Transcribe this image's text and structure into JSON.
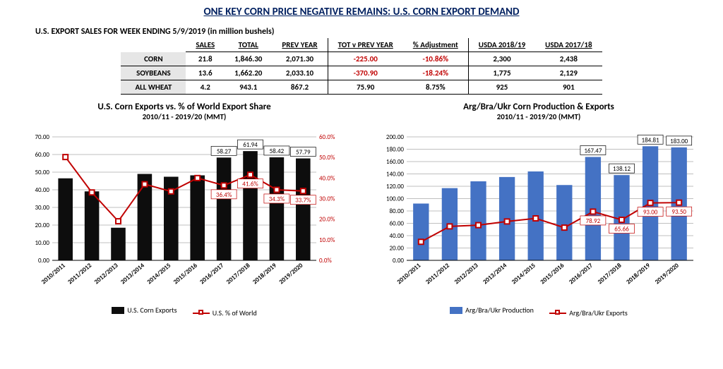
{
  "page": {
    "title": "ONE KEY CORN PRICE NEGATIVE REMAINS:  U.S. CORN EXPORT DEMAND",
    "table_caption": "U.S. EXPORT SALES FOR WEEK ENDING 5/9/2019 (in million bushels)"
  },
  "table": {
    "columns": [
      "",
      "SALES",
      "TOTAL",
      "PREV YEAR",
      "TOT v PREV YEAR",
      "% Adjustment",
      "USDA 2018/19",
      "USDA 2017/18"
    ],
    "rows_meta": [
      {
        "label": "CORN",
        "neg": true
      },
      {
        "label": "SOYBEANS",
        "neg": true
      },
      {
        "label": "ALL WHEAT",
        "neg": false
      }
    ],
    "rows": [
      [
        "21.8",
        "1,846.30",
        "2,071.30",
        "-225.00",
        "-10.86%",
        "2,300",
        "2,438"
      ],
      [
        "13.6",
        "1,662.20",
        "2,033.10",
        "-370.90",
        "-18.24%",
        "1,775",
        "2,129"
      ],
      [
        "4.2",
        "943.1",
        "867.2",
        "75.90",
        "8.75%",
        "925",
        "901"
      ]
    ]
  },
  "chart_left": {
    "title": "U.S. Corn Exports vs. % of World Export Share",
    "subtitle": "2010/11 - 2019/20 (MMT)",
    "type": "bar+line",
    "categories": [
      "2010/2011",
      "2011/2012",
      "2012/2013",
      "2013/2014",
      "2014/2015",
      "2015/2016",
      "2016/2017",
      "2017/2018",
      "2018/2019",
      "2019/2020"
    ],
    "bars": {
      "label": "U.S. Corn Exports",
      "color": "#0d0d0d",
      "width": 0.55,
      "values": [
        46.5,
        39.1,
        18.5,
        49.0,
        47.4,
        48.2,
        58.27,
        61.94,
        58.42,
        57.79
      ],
      "show_label_idx": [
        6,
        7,
        8,
        9
      ],
      "show_labels": [
        "58.27",
        "61.94",
        "58.42",
        "57.79"
      ]
    },
    "line": {
      "label": "U.S. % of World",
      "color": "#c00000",
      "marker": "square",
      "marker_size": 7,
      "values": [
        50.2,
        33.0,
        19.0,
        37.0,
        33.5,
        40.0,
        36.4,
        41.6,
        34.3,
        33.7
      ],
      "show_label_idx": [
        6,
        7,
        8,
        9
      ],
      "show_labels": [
        "36.4%",
        "41.6%",
        "34.3%",
        "33.7%"
      ]
    },
    "y_left": {
      "min": 0,
      "max": 70,
      "step": 10,
      "fmt": "fixed2",
      "color": "#000"
    },
    "y_right": {
      "min": 0,
      "max": 60,
      "step": 10,
      "fmt": "pct1",
      "color": "#c00000"
    },
    "grid_color": "#bfbfbf",
    "bg": "#ffffff",
    "label_font": 9,
    "tick_font": 9
  },
  "chart_right": {
    "title": "Arg/Bra/Ukr Corn Production & Exports",
    "subtitle": "2010/11 - 2019/20 (MMT)",
    "type": "bar+line",
    "categories": [
      "2010/2011",
      "2011/2012",
      "2012/2013",
      "2013/2014",
      "2014/2015",
      "2015/2016",
      "2016/2017",
      "2017/2018",
      "2018/2019",
      "2019/2020"
    ],
    "bars": {
      "label": "Arg/Bra/Ukr Production",
      "color": "#4472c4",
      "width": 0.55,
      "values": [
        92,
        117,
        128,
        135,
        144,
        122,
        167.47,
        138.12,
        184.81,
        183.0
      ],
      "show_label_idx": [
        6,
        7,
        8,
        9
      ],
      "show_labels": [
        "167.47",
        "138.12",
        "184.81",
        "183.00"
      ]
    },
    "line": {
      "label": "Arg/Bra/Ukr Exports",
      "color": "#c00000",
      "marker": "square",
      "marker_size": 7,
      "values": [
        30,
        55,
        57,
        63,
        68,
        53,
        78.92,
        65.66,
        93.0,
        93.5
      ],
      "show_label_idx": [
        6,
        7,
        8,
        9
      ],
      "show_labels": [
        "78.92",
        "65.66",
        "93.00",
        "93.50"
      ]
    },
    "y_left": {
      "min": 0,
      "max": 200,
      "step": 20,
      "fmt": "fixed2",
      "color": "#000"
    },
    "y_right": null,
    "grid_color": "#bfbfbf",
    "bg": "#ffffff",
    "label_font": 9,
    "tick_font": 9
  }
}
